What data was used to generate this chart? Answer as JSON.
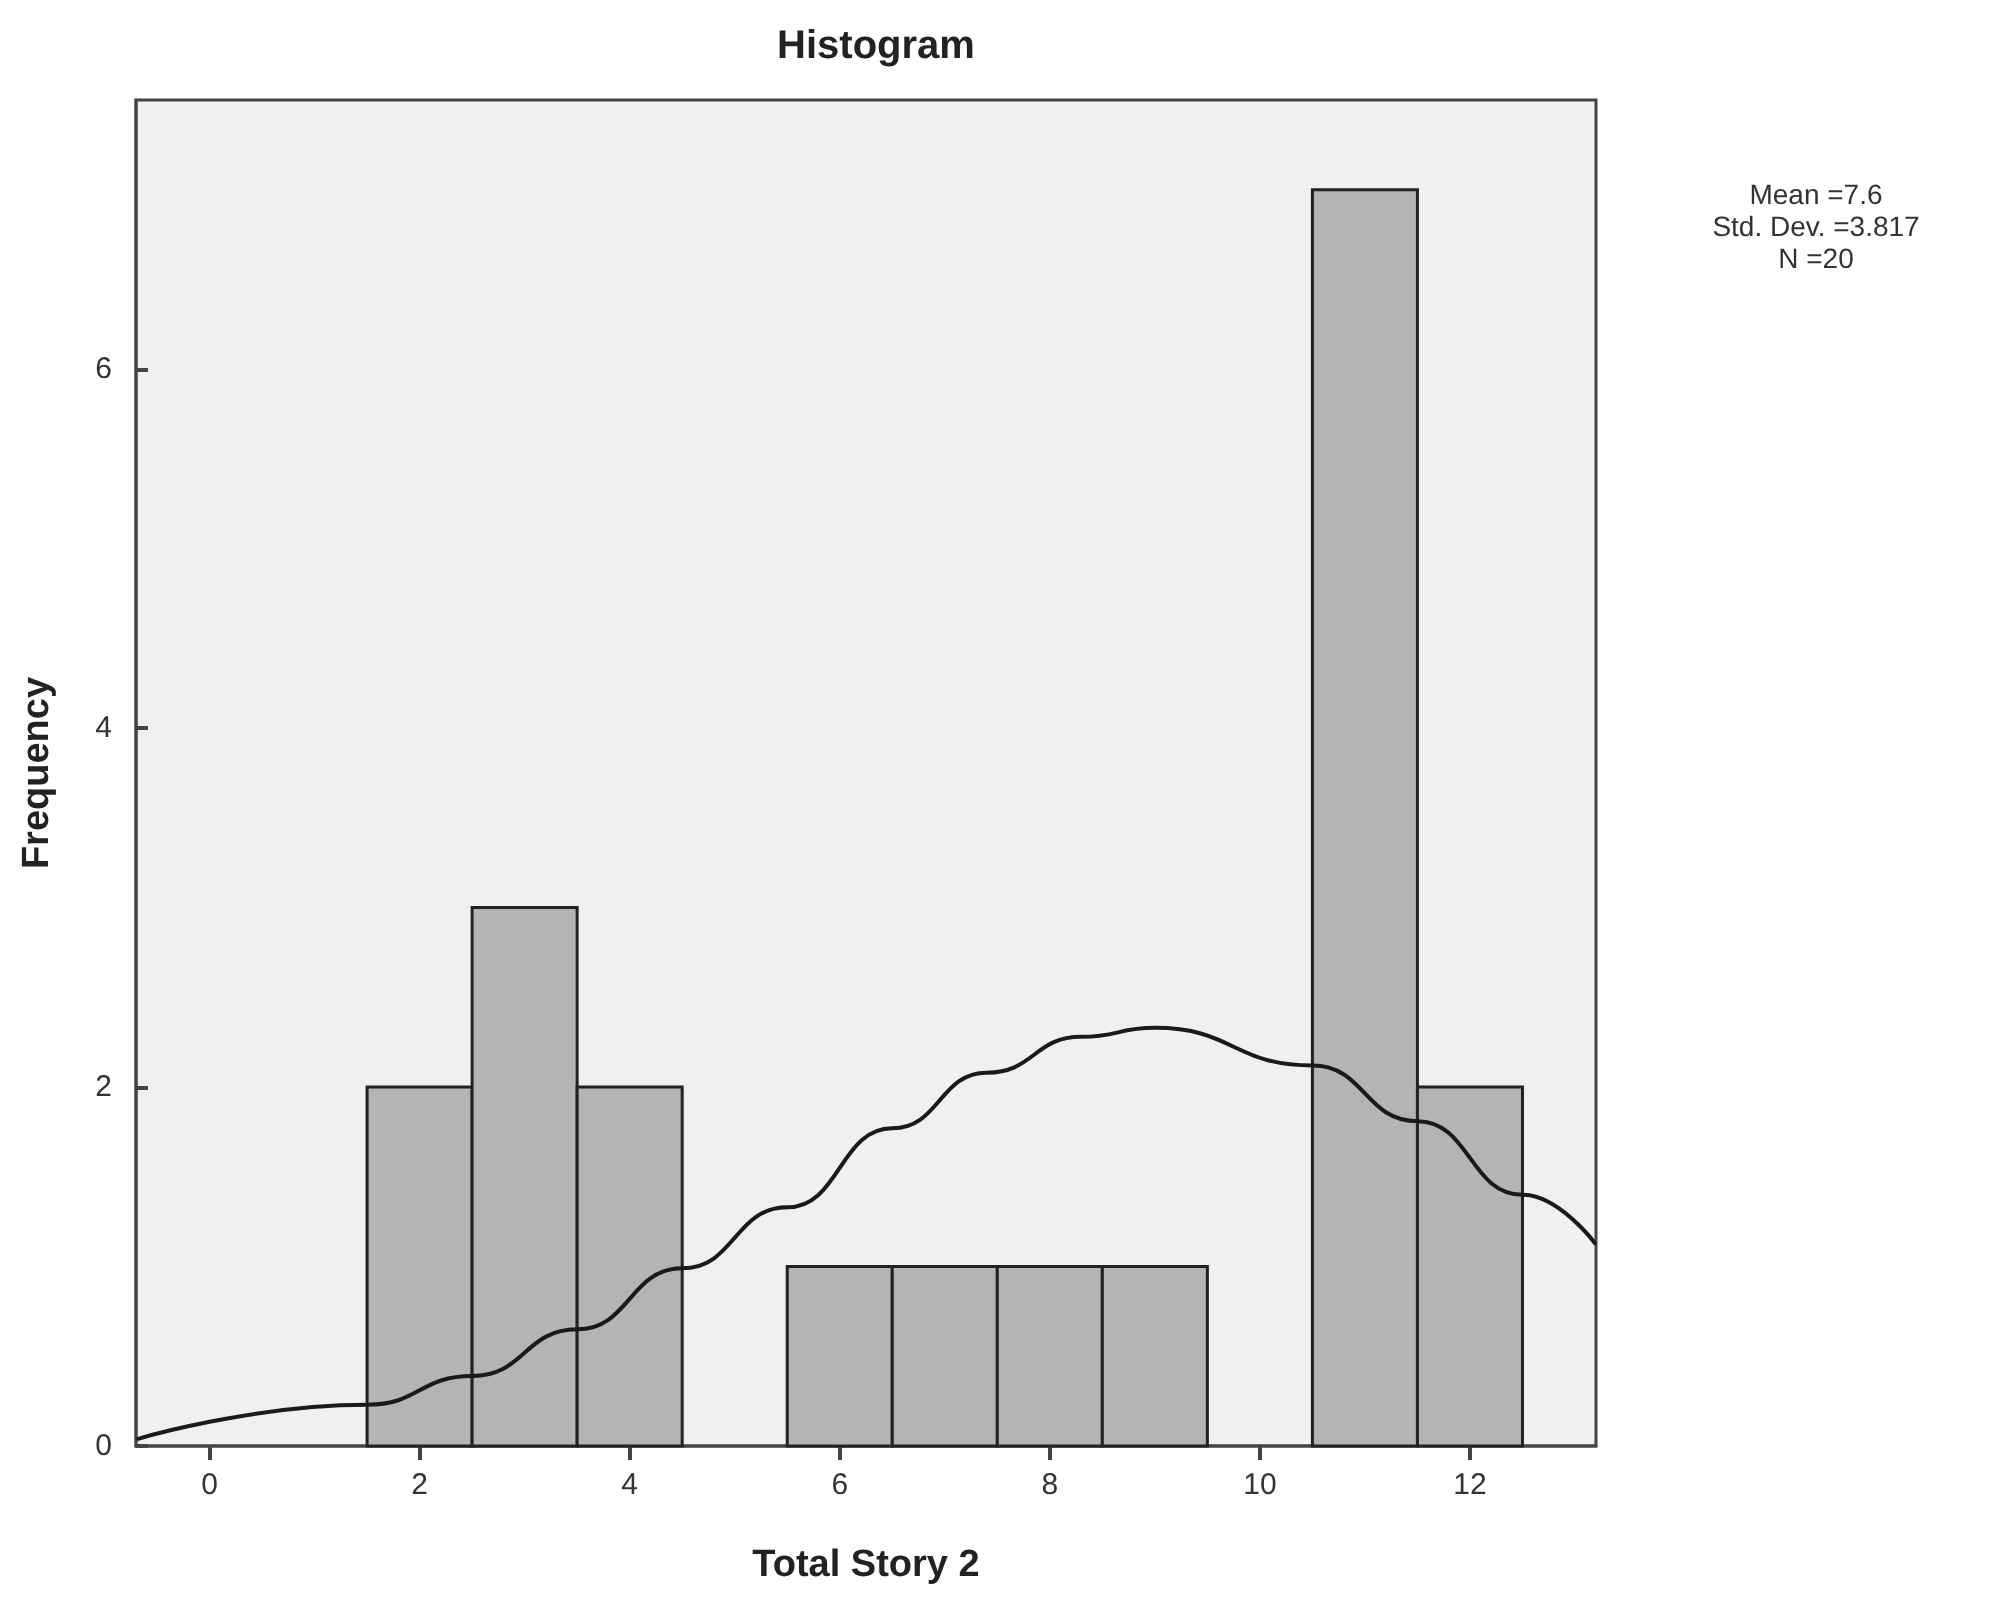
{
  "chart_data": {
    "type": "histogram",
    "title": "Histogram",
    "xlabel": "Total Story 2",
    "ylabel": "Frequency",
    "bins": [
      1.5,
      2.5,
      3.5,
      4.5,
      5.5,
      6.5,
      7.5,
      8.5,
      9.5,
      10.5,
      11.5,
      12.5
    ],
    "values": [
      2,
      3,
      2,
      0,
      1,
      1,
      1,
      1,
      0,
      7,
      2
    ],
    "color": "#b4b4b4",
    "series": [
      {
        "type": "line",
        "color": "#1a1a1a",
        "x": [
          -0.68,
          1.5,
          2.5,
          3.5,
          4.5,
          5.5,
          6.5,
          7.4,
          8.3,
          9.0,
          10.5,
          11.5,
          12.5,
          13.19
        ],
        "values": [
          0.04,
          0.23,
          0.39,
          0.65,
          0.99,
          1.33,
          1.77,
          2.08,
          2.28,
          2.33,
          2.12,
          1.81,
          1.4,
          1.13
        ]
      }
    ],
    "xlim": [
      -0.7,
      13.2
    ],
    "xticks": [
      0,
      2,
      4,
      6,
      8,
      10,
      12
    ],
    "ylim": [
      0,
      7.5
    ],
    "yticks": [
      0,
      2,
      4,
      6
    ],
    "grid": false,
    "marker": "none",
    "line_style": "solid",
    "annotations": [
      "Mean =7.6",
      "Std. Dev. =3.817",
      "N =20"
    ]
  }
}
